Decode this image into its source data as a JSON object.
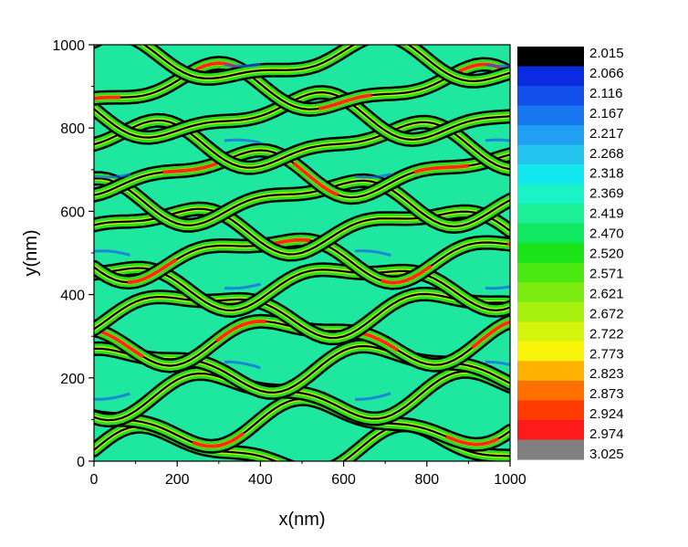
{
  "chart_data": {
    "type": "heatmap",
    "title": "",
    "xlabel": "x(nm)",
    "ylabel": "y(nm)",
    "xlim": [
      0,
      1000
    ],
    "ylim": [
      0,
      1000
    ],
    "x_ticks": [
      "0",
      "200",
      "400",
      "600",
      "800",
      "1000"
    ],
    "y_ticks": [
      "0",
      "200",
      "400",
      "600",
      "800",
      "1000"
    ],
    "grid": false,
    "description_of_pattern": "",
    "colorbar": {
      "position": "right",
      "labels": [
        "2.015",
        "2.066",
        "2.116",
        "2.167",
        "2.217",
        "2.268",
        "2.318",
        "2.369",
        "2.419",
        "2.470",
        "2.520",
        "2.571",
        "2.621",
        "2.672",
        "2.722",
        "2.773",
        "2.823",
        "2.873",
        "2.924",
        "2.974",
        "3.025"
      ],
      "colors": [
        "#000000",
        "#0a2be0",
        "#1150ea",
        "#1877f0",
        "#20a0f2",
        "#22c4ee",
        "#12e8f0",
        "#1af2c8",
        "#1cf096",
        "#10e860",
        "#18e418",
        "#4ce812",
        "#7cec10",
        "#a8f00e",
        "#d4f40c",
        "#f8f40a",
        "#ffb000",
        "#ff7000",
        "#ff3a00",
        "#ff1a1a",
        "#808080"
      ]
    },
    "pattern_colors": {
      "background": "#1ee8a0",
      "ridge_black": "#000000",
      "ridge_green": "#28e020",
      "ridge_yellow": "#c8f010",
      "core_red": "#ff2a10",
      "trough_blue": "#1860f0"
    }
  }
}
